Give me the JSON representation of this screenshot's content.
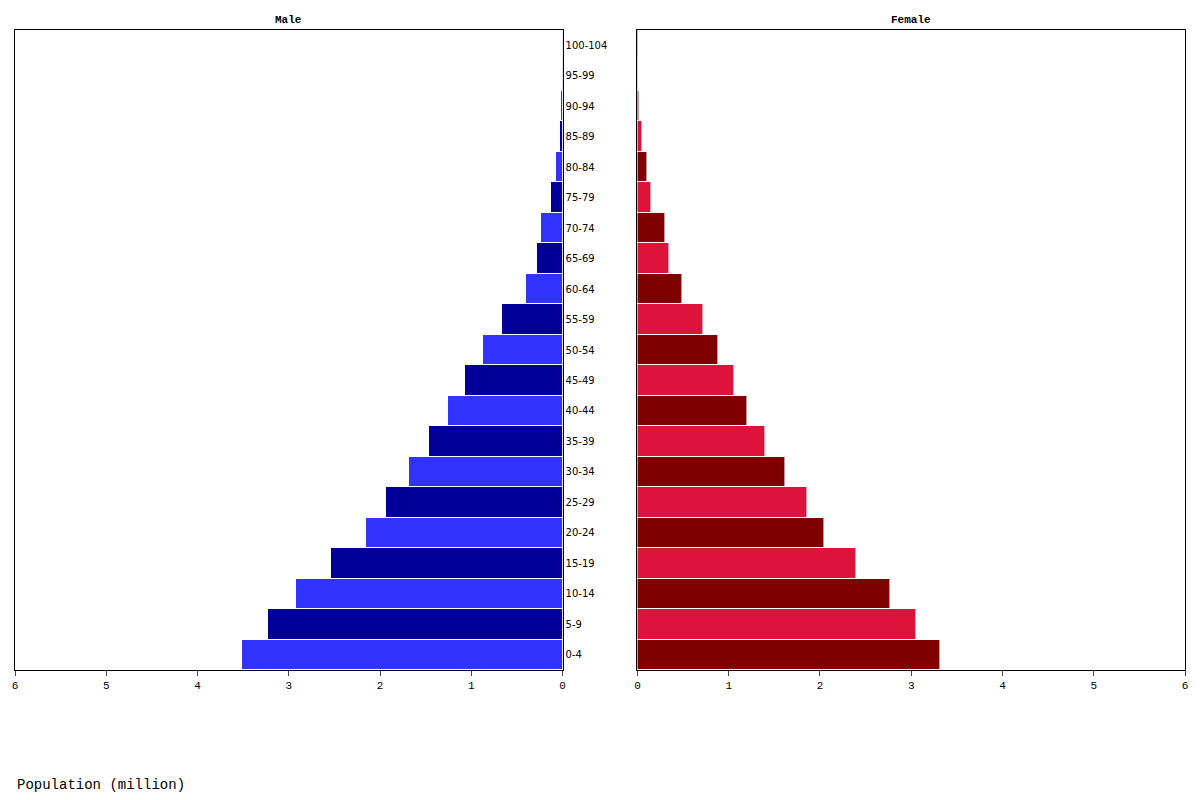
{
  "chart_data": [
    {
      "type": "bar",
      "orientation": "horizontal",
      "title": "Male",
      "xlabel": "Population (million)",
      "categories": [
        "0-4",
        "5-9",
        "10-14",
        "15-19",
        "20-24",
        "25-29",
        "30-34",
        "35-39",
        "40-44",
        "45-49",
        "50-54",
        "55-59",
        "60-64",
        "65-69",
        "70-74",
        "75-79",
        "80-84",
        "85-89",
        "90-94",
        "95-99",
        "100-104"
      ],
      "values": [
        3.51,
        3.23,
        2.92,
        2.54,
        2.15,
        1.94,
        1.68,
        1.46,
        1.25,
        1.07,
        0.87,
        0.66,
        0.4,
        0.28,
        0.24,
        0.13,
        0.07,
        0.03,
        0.015,
        0.01,
        0.005
      ],
      "colors": [
        "#3333FF",
        "#000099",
        "#3333FF",
        "#000099",
        "#3333FF",
        "#000099",
        "#3333FF",
        "#000099",
        "#3333FF",
        "#000099",
        "#3333FF",
        "#000099",
        "#3333FF",
        "#000099",
        "#3333FF",
        "#000099",
        "#3333FF",
        "#000099",
        "#3333FF",
        "#000099",
        "#3333FF"
      ],
      "xlim": [
        6,
        0
      ],
      "xticks": [
        0,
        1,
        2,
        3,
        4,
        5,
        6
      ]
    },
    {
      "type": "bar",
      "orientation": "horizontal",
      "title": "Female",
      "categories": [
        "0-4",
        "5-9",
        "10-14",
        "15-19",
        "20-24",
        "25-29",
        "30-34",
        "35-39",
        "40-44",
        "45-49",
        "50-54",
        "55-59",
        "60-64",
        "65-69",
        "70-74",
        "75-79",
        "80-84",
        "85-89",
        "90-94",
        "95-99",
        "100-104"
      ],
      "values": [
        3.32,
        3.06,
        2.77,
        2.4,
        2.05,
        1.86,
        1.62,
        1.4,
        1.21,
        1.06,
        0.89,
        0.72,
        0.49,
        0.35,
        0.31,
        0.15,
        0.11,
        0.05,
        0.02,
        0.01,
        0.01
      ],
      "colors": [
        "#800000",
        "#DC143C",
        "#800000",
        "#DC143C",
        "#800000",
        "#DC143C",
        "#800000",
        "#DC143C",
        "#800000",
        "#DC143C",
        "#800000",
        "#DC143C",
        "#800000",
        "#DC143C",
        "#800000",
        "#DC143C",
        "#800000",
        "#DC143C",
        "#800000",
        "#DC143C",
        "#800000"
      ],
      "xlim": [
        0,
        6
      ],
      "xticks": [
        0,
        1,
        2,
        3,
        4,
        5,
        6
      ]
    }
  ]
}
